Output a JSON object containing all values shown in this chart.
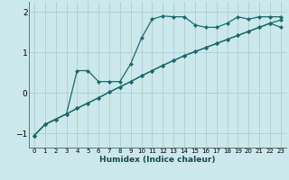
{
  "xlabel": "Humidex (Indice chaleur)",
  "background_color": "#cce8ea",
  "plot_bg_color": "#cce8ea",
  "grid_color": "#aacfd2",
  "line_color": "#1a6b6b",
  "xlim": [
    -0.5,
    23.5
  ],
  "ylim": [
    -1.35,
    2.25
  ],
  "yticks": [
    -1,
    0,
    1,
    2
  ],
  "xticks": [
    0,
    1,
    2,
    3,
    4,
    5,
    6,
    7,
    8,
    9,
    10,
    11,
    12,
    13,
    14,
    15,
    16,
    17,
    18,
    19,
    20,
    21,
    22,
    23
  ],
  "line1_x": [
    0,
    1,
    2,
    3,
    4,
    5,
    6,
    7,
    8,
    9,
    10,
    11,
    12,
    13,
    14,
    15,
    16,
    17,
    18,
    19,
    20,
    21,
    22,
    23
  ],
  "line1_y": [
    -1.05,
    -0.78,
    -0.65,
    -0.52,
    0.55,
    0.55,
    0.28,
    0.28,
    0.28,
    0.72,
    1.35,
    1.82,
    1.9,
    1.88,
    1.88,
    1.68,
    1.62,
    1.62,
    1.72,
    1.88,
    1.82,
    1.88,
    1.88,
    1.88
  ],
  "line2_x": [
    0,
    1,
    2,
    3,
    4,
    5,
    6,
    7,
    8,
    9,
    10,
    11,
    12,
    13,
    14,
    15,
    16,
    17,
    18,
    19,
    20,
    21,
    22,
    23
  ],
  "line2_y": [
    -1.05,
    -0.78,
    -0.65,
    -0.52,
    -0.38,
    -0.25,
    -0.12,
    0.02,
    0.15,
    0.28,
    0.42,
    0.55,
    0.68,
    0.8,
    0.92,
    1.02,
    1.12,
    1.22,
    1.32,
    1.42,
    1.52,
    1.62,
    1.72,
    1.8
  ],
  "line3_x": [
    0,
    1,
    2,
    3,
    4,
    5,
    6,
    7,
    8,
    9,
    10,
    11,
    12,
    13,
    14,
    15,
    16,
    17,
    18,
    19,
    20,
    21,
    22,
    23
  ],
  "line3_y": [
    -1.05,
    -0.78,
    -0.65,
    -0.52,
    -0.38,
    -0.25,
    -0.12,
    0.02,
    0.15,
    0.28,
    0.42,
    0.55,
    0.68,
    0.8,
    0.92,
    1.02,
    1.12,
    1.22,
    1.32,
    1.42,
    1.52,
    1.62,
    1.72,
    1.62
  ]
}
